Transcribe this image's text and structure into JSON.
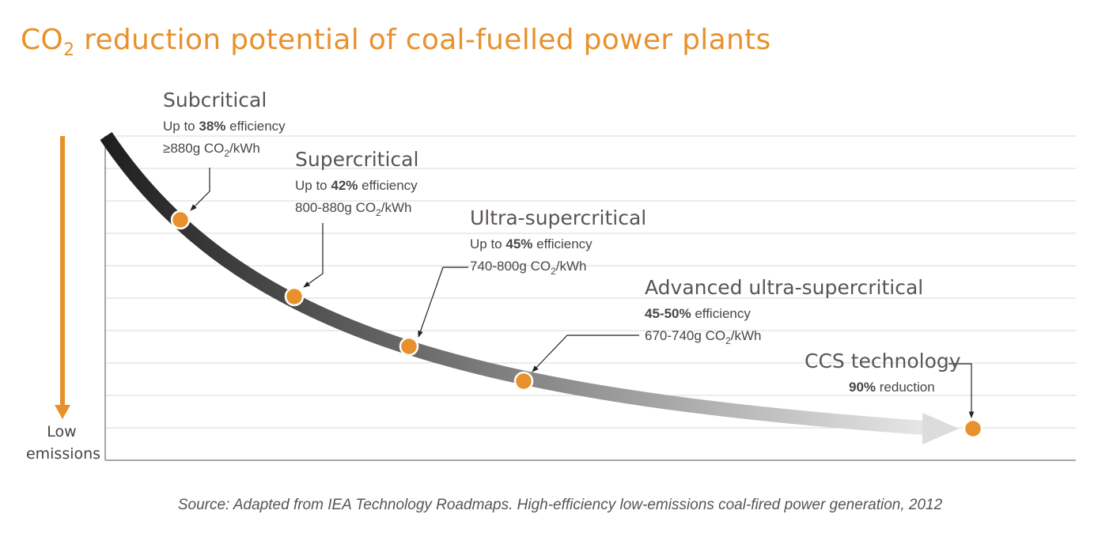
{
  "title": {
    "prefix": "CO",
    "subscript": "2",
    "suffix": " reduction potential of coal-fuelled power plants"
  },
  "colors": {
    "accent": "#e8912c",
    "curve_start": "#1f1f1f",
    "curve_end": "#e6e6e6",
    "gridline": "#d9d9d9",
    "axis": "#888888"
  },
  "source": "Source: Adapted from IEA Technology Roadmaps. High-efficiency low-emissions coal-fired power generation, 2012",
  "chart_data": {
    "type": "line",
    "y_axis_label": [
      "Low",
      "emissions"
    ],
    "grid": true,
    "points": [
      {
        "name": "Subcritical",
        "line1": [
          "Up to ",
          "38%",
          " efficiency"
        ],
        "line2": [
          "≥880g CO",
          "2",
          "/kWh"
        ]
      },
      {
        "name": "Supercritical",
        "line1": [
          "Up to ",
          "42%",
          " efficiency"
        ],
        "line2": [
          "800-880g CO",
          "2",
          "/kWh"
        ]
      },
      {
        "name": "Ultra-supercritical",
        "line1": [
          "Up to ",
          "45%",
          " efficiency"
        ],
        "line2": [
          "740-800g CO",
          "2",
          "/kWh"
        ]
      },
      {
        "name": "Advanced ultra-supercritical",
        "line1": [
          "",
          "45-50%",
          " efficiency"
        ],
        "line2": [
          "670-740g CO",
          "2",
          "/kWh"
        ]
      },
      {
        "name": "CCS technology",
        "line1": [
          "",
          "90%",
          " reduction"
        ]
      }
    ]
  }
}
